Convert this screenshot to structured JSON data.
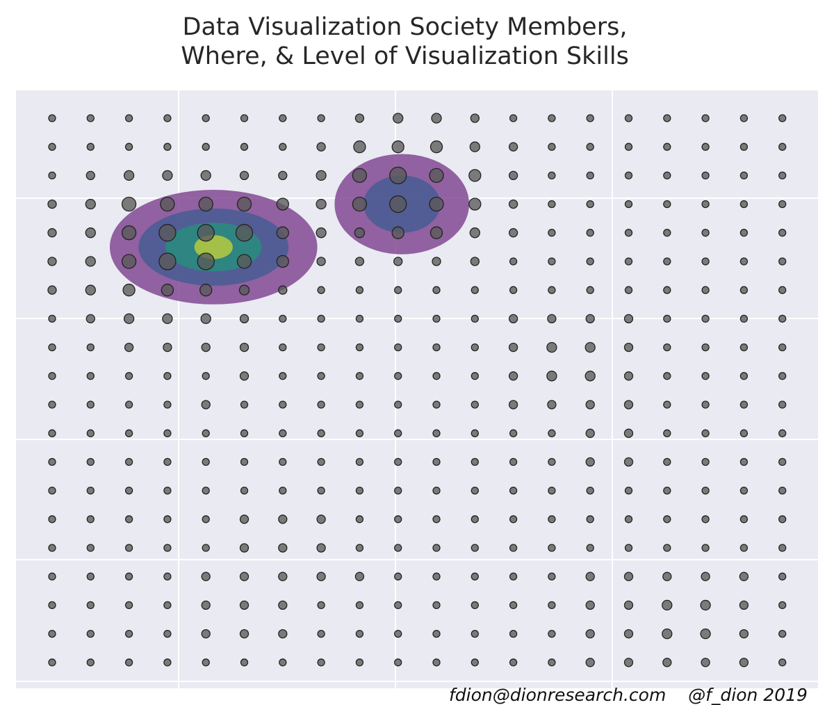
{
  "chart_data": {
    "type": "scatter",
    "title_lines": [
      "Data Visualization Society Members,",
      "Where, & Level of Visualization Skills"
    ],
    "xlabel": "",
    "ylabel": "",
    "grid": true,
    "footer": "fdion@dionresearch.com    @f_dion 2019",
    "colors": {
      "background": "#eaeaf2",
      "gridline": "#ffffff",
      "dot_fill": "#5a5a5a",
      "dot_stroke": "#222222",
      "density": [
        "#7b3f8c",
        "#4b5d93",
        "#2a8a7e",
        "#b0c642"
      ]
    },
    "dot_grid": {
      "cols": 20,
      "rows": 20
    },
    "dot_sizes": [
      [
        1,
        1,
        1,
        1,
        1,
        1,
        1,
        1,
        2,
        3,
        3,
        2,
        1,
        1,
        1,
        1,
        1,
        1,
        1,
        1
      ],
      [
        1,
        1,
        1,
        1,
        1,
        1,
        1,
        2,
        4,
        4,
        4,
        3,
        2,
        1,
        1,
        1,
        1,
        1,
        1,
        1
      ],
      [
        1,
        2,
        3,
        3,
        3,
        2,
        2,
        3,
        5,
        6,
        5,
        4,
        2,
        1,
        1,
        1,
        1,
        1,
        1,
        1
      ],
      [
        2,
        3,
        5,
        5,
        5,
        5,
        4,
        3,
        5,
        6,
        5,
        4,
        2,
        1,
        1,
        1,
        1,
        1,
        1,
        1
      ],
      [
        2,
        3,
        5,
        6,
        6,
        6,
        4,
        3,
        3,
        4,
        4,
        3,
        2,
        1,
        1,
        1,
        1,
        1,
        1,
        1
      ],
      [
        2,
        3,
        5,
        6,
        6,
        5,
        4,
        2,
        2,
        2,
        2,
        2,
        1,
        1,
        1,
        1,
        1,
        1,
        1,
        1
      ],
      [
        2,
        3,
        4,
        4,
        4,
        3,
        2,
        1,
        1,
        1,
        1,
        1,
        1,
        1,
        1,
        1,
        1,
        1,
        1,
        1
      ],
      [
        1,
        2,
        3,
        3,
        3,
        2,
        1,
        1,
        1,
        1,
        1,
        1,
        2,
        2,
        2,
        2,
        1,
        1,
        1,
        1
      ],
      [
        1,
        1,
        2,
        2,
        2,
        2,
        1,
        1,
        1,
        1,
        1,
        1,
        2,
        3,
        3,
        2,
        1,
        1,
        1,
        1
      ],
      [
        1,
        1,
        1,
        1,
        1,
        2,
        1,
        1,
        1,
        1,
        1,
        1,
        2,
        3,
        3,
        2,
        1,
        1,
        1,
        1
      ],
      [
        1,
        1,
        1,
        1,
        2,
        1,
        1,
        1,
        1,
        1,
        1,
        1,
        2,
        2,
        2,
        2,
        1,
        1,
        1,
        1
      ],
      [
        1,
        1,
        1,
        1,
        1,
        1,
        1,
        1,
        1,
        1,
        1,
        1,
        1,
        1,
        2,
        2,
        1,
        1,
        1,
        1
      ],
      [
        1,
        1,
        1,
        1,
        1,
        1,
        1,
        1,
        1,
        1,
        1,
        1,
        1,
        1,
        2,
        2,
        1,
        1,
        1,
        1
      ],
      [
        1,
        1,
        1,
        1,
        1,
        1,
        1,
        1,
        1,
        1,
        1,
        1,
        1,
        1,
        1,
        1,
        1,
        1,
        1,
        1
      ],
      [
        1,
        1,
        1,
        1,
        1,
        2,
        2,
        2,
        1,
        1,
        1,
        1,
        1,
        1,
        1,
        1,
        1,
        1,
        1,
        1
      ],
      [
        1,
        1,
        1,
        1,
        1,
        2,
        2,
        2,
        1,
        1,
        1,
        1,
        1,
        1,
        1,
        1,
        1,
        1,
        1,
        1
      ],
      [
        1,
        1,
        1,
        1,
        2,
        2,
        2,
        2,
        2,
        1,
        1,
        1,
        1,
        1,
        2,
        2,
        2,
        2,
        2,
        1
      ],
      [
        1,
        1,
        1,
        1,
        2,
        2,
        2,
        1,
        1,
        1,
        1,
        1,
        1,
        1,
        2,
        2,
        3,
        3,
        2,
        1
      ],
      [
        1,
        1,
        1,
        1,
        2,
        2,
        2,
        1,
        1,
        1,
        1,
        1,
        1,
        1,
        2,
        2,
        3,
        3,
        2,
        1
      ],
      [
        1,
        1,
        1,
        1,
        1,
        1,
        1,
        1,
        1,
        1,
        1,
        1,
        1,
        1,
        2,
        2,
        2,
        2,
        2,
        1
      ]
    ],
    "density_clusters": [
      {
        "center": {
          "col": 4.2,
          "row": 4.5
        },
        "levels": [
          {
            "rx_cols": 2.7,
            "ry_rows": 2.0
          },
          {
            "rx_cols": 1.95,
            "ry_rows": 1.35
          },
          {
            "rx_cols": 1.25,
            "ry_rows": 0.85
          },
          {
            "rx_cols": 0.5,
            "ry_rows": 0.42
          }
        ]
      },
      {
        "center": {
          "col": 9.1,
          "row": 3.0
        },
        "levels": [
          {
            "rx_cols": 1.75,
            "ry_rows": 1.75
          },
          {
            "rx_cols": 1.0,
            "ry_rows": 1.0
          }
        ]
      }
    ]
  }
}
